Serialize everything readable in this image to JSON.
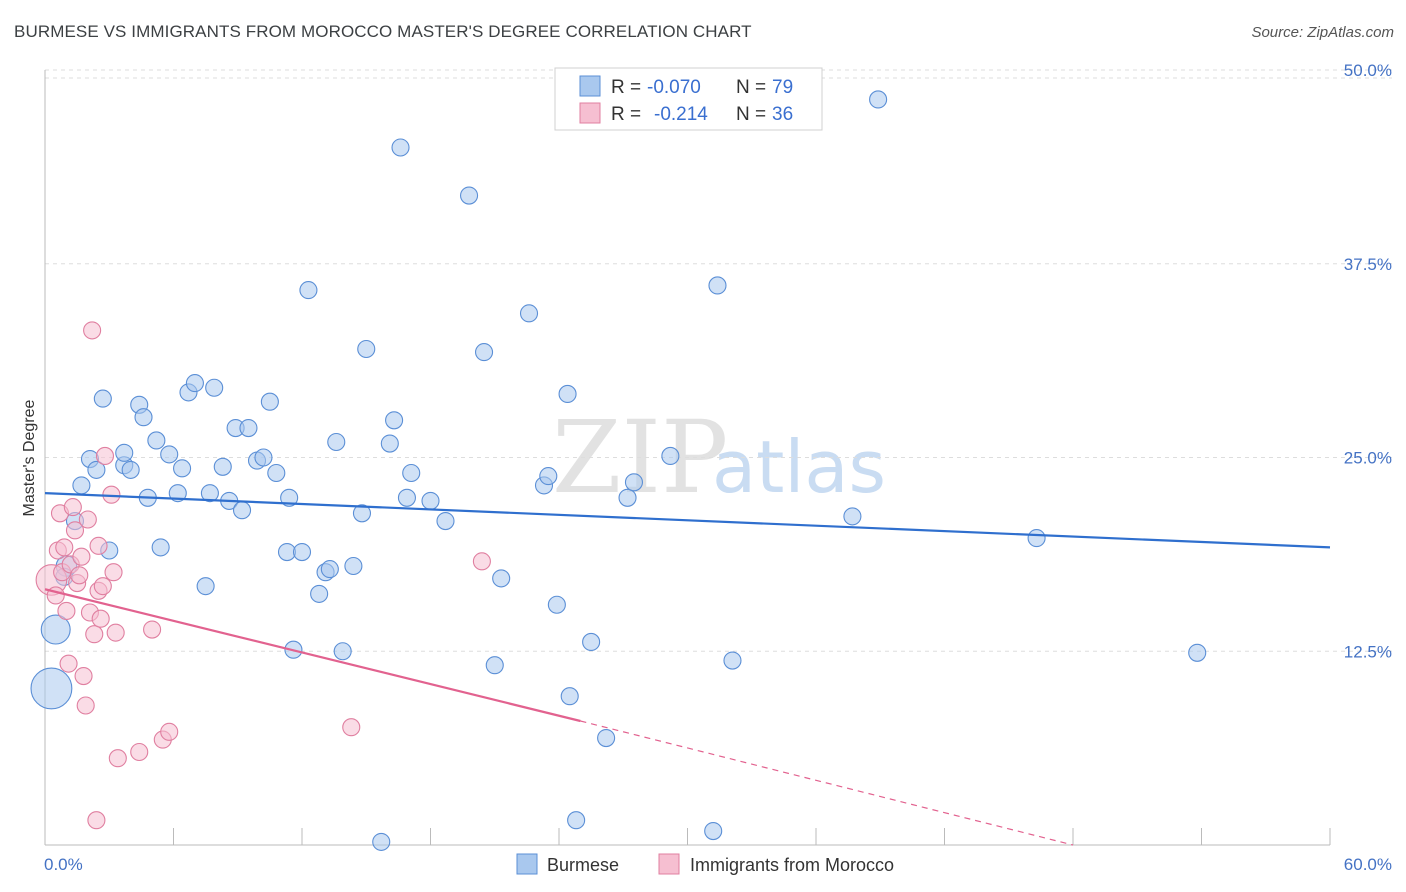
{
  "header": {
    "title": "BURMESE VS IMMIGRANTS FROM MOROCCO MASTER'S DEGREE CORRELATION CHART",
    "source": "Source: ZipAtlas.com"
  },
  "watermark": {
    "part1": "ZIP",
    "part2": "atlas"
  },
  "legend": {
    "rows": [
      {
        "r_label": "R =",
        "r_value": "-0.070",
        "n_label": "N =",
        "n_value": "79",
        "color": "#a9c8ee",
        "stroke": "#5b8fd6"
      },
      {
        "r_label": "R =",
        "r_value": "-0.214",
        "n_label": "N =",
        "n_value": "36",
        "color": "#f6bfd1",
        "stroke": "#e07fa0"
      }
    ]
  },
  "bottom_legend": [
    {
      "label": "Burmese",
      "color": "#a9c8ee",
      "stroke": "#5b8fd6"
    },
    {
      "label": "Immigrants from Morocco",
      "color": "#f6bfd1",
      "stroke": "#e07fa0"
    }
  ],
  "chart_data": {
    "type": "scatter",
    "title": "BURMESE VS IMMIGRANTS FROM MOROCCO MASTER'S DEGREE CORRELATION CHART",
    "xlabel": "",
    "ylabel": "Master's Degree",
    "xlim": [
      0,
      60
    ],
    "ylim": [
      0,
      50
    ],
    "x_tick_labels": [
      "0.0%",
      "60.0%"
    ],
    "y_ticks": [
      12.5,
      25.0,
      37.5,
      50.0
    ],
    "y_tick_labels": [
      "12.5%",
      "25.0%",
      "37.5%",
      "50.0%"
    ],
    "grid": true,
    "series": [
      {
        "name": "Burmese",
        "color": "#a9c8ee",
        "stroke": "#5b8fd6",
        "trend": {
          "x": [
            0,
            60
          ],
          "y": [
            22.7,
            19.2
          ],
          "color": "#2f6fce"
        },
        "points": [
          [
            0.3,
            10.1,
            2.4
          ],
          [
            0.5,
            13.9,
            1.7
          ],
          [
            1.0,
            18.0,
            1.2
          ],
          [
            0.9,
            17.3,
            1.0
          ],
          [
            1.4,
            20.9,
            1.0
          ],
          [
            1.7,
            23.2,
            1.0
          ],
          [
            2.1,
            24.9,
            1.0
          ],
          [
            2.4,
            24.2,
            1.0
          ],
          [
            2.7,
            28.8,
            1.0
          ],
          [
            3.0,
            19.0,
            1.0
          ],
          [
            3.7,
            24.5,
            1.0
          ],
          [
            3.7,
            25.3,
            1.0
          ],
          [
            4.0,
            24.2,
            1.0
          ],
          [
            4.4,
            28.4,
            1.0
          ],
          [
            4.6,
            27.6,
            1.0
          ],
          [
            4.8,
            22.4,
            1.0
          ],
          [
            5.2,
            26.1,
            1.0
          ],
          [
            5.4,
            19.2,
            1.0
          ],
          [
            5.8,
            25.2,
            1.0
          ],
          [
            6.2,
            22.7,
            1.0
          ],
          [
            6.4,
            24.3,
            1.0
          ],
          [
            6.7,
            29.2,
            1.0
          ],
          [
            7.0,
            29.8,
            1.0
          ],
          [
            7.5,
            16.7,
            1.0
          ],
          [
            7.7,
            22.7,
            1.0
          ],
          [
            7.9,
            29.5,
            1.0
          ],
          [
            8.3,
            24.4,
            1.0
          ],
          [
            8.6,
            22.2,
            1.0
          ],
          [
            8.9,
            26.9,
            1.0
          ],
          [
            9.2,
            21.6,
            1.0
          ],
          [
            9.5,
            26.9,
            1.0
          ],
          [
            9.9,
            24.8,
            1.0
          ],
          [
            10.2,
            25.0,
            1.0
          ],
          [
            10.5,
            28.6,
            1.0
          ],
          [
            10.8,
            24.0,
            1.0
          ],
          [
            11.3,
            18.9,
            1.0
          ],
          [
            11.4,
            22.4,
            1.0
          ],
          [
            11.6,
            12.6,
            1.0
          ],
          [
            12.0,
            18.9,
            1.0
          ],
          [
            12.3,
            35.8,
            1.0
          ],
          [
            12.8,
            16.2,
            1.0
          ],
          [
            13.1,
            17.6,
            1.0
          ],
          [
            13.3,
            17.8,
            1.0
          ],
          [
            13.6,
            26.0,
            1.0
          ],
          [
            13.9,
            12.5,
            1.0
          ],
          [
            14.4,
            18.0,
            1.0
          ],
          [
            14.8,
            21.4,
            1.0
          ],
          [
            15.0,
            32.0,
            1.0
          ],
          [
            15.7,
            0.2,
            1.0
          ],
          [
            16.1,
            25.9,
            1.0
          ],
          [
            16.3,
            27.4,
            1.0
          ],
          [
            16.6,
            45.0,
            1.0
          ],
          [
            16.9,
            22.4,
            1.0
          ],
          [
            17.1,
            24.0,
            1.0
          ],
          [
            18.0,
            22.2,
            1.0
          ],
          [
            18.7,
            20.9,
            1.0
          ],
          [
            19.8,
            41.9,
            1.0
          ],
          [
            20.5,
            31.8,
            1.0
          ],
          [
            21.0,
            11.6,
            1.0
          ],
          [
            21.3,
            17.2,
            1.0
          ],
          [
            22.6,
            34.3,
            1.0
          ],
          [
            23.3,
            23.2,
            1.0
          ],
          [
            23.5,
            23.8,
            1.0
          ],
          [
            23.9,
            15.5,
            1.0
          ],
          [
            24.4,
            29.1,
            1.0
          ],
          [
            24.5,
            9.6,
            1.0
          ],
          [
            24.8,
            1.6,
            1.0
          ],
          [
            25.5,
            13.1,
            1.0
          ],
          [
            26.2,
            6.9,
            1.0
          ],
          [
            27.2,
            22.4,
            1.0
          ],
          [
            27.5,
            23.4,
            1.0
          ],
          [
            29.2,
            25.1,
            1.0
          ],
          [
            31.2,
            0.9,
            1.0
          ],
          [
            31.4,
            36.1,
            1.0
          ],
          [
            32.1,
            11.9,
            1.0
          ],
          [
            37.7,
            21.2,
            1.0
          ],
          [
            38.9,
            48.1,
            1.0
          ],
          [
            46.3,
            19.8,
            1.0
          ],
          [
            53.8,
            12.4,
            1.0
          ]
        ]
      },
      {
        "name": "Immigrants from Morocco",
        "color": "#f6bfd1",
        "stroke": "#e07fa0",
        "trend": {
          "x": [
            0,
            25.0
          ],
          "y": [
            16.5,
            8.0
          ],
          "dash_extend_to": [
            48.0,
            0.0
          ],
          "color": "#e2628f"
        },
        "points": [
          [
            0.3,
            17.1,
            1.8
          ],
          [
            0.5,
            16.1,
            1.0
          ],
          [
            0.6,
            19.0,
            1.0
          ],
          [
            0.8,
            17.6,
            1.0
          ],
          [
            0.7,
            21.4,
            1.0
          ],
          [
            0.9,
            19.2,
            1.0
          ],
          [
            1.0,
            15.1,
            1.0
          ],
          [
            1.1,
            11.7,
            1.0
          ],
          [
            1.2,
            18.1,
            1.0
          ],
          [
            1.3,
            21.8,
            1.0
          ],
          [
            1.4,
            20.3,
            1.0
          ],
          [
            1.5,
            16.9,
            1.0
          ],
          [
            1.6,
            17.4,
            1.0
          ],
          [
            1.7,
            18.6,
            1.0
          ],
          [
            1.8,
            10.9,
            1.0
          ],
          [
            1.9,
            9.0,
            1.0
          ],
          [
            2.0,
            21.0,
            1.0
          ],
          [
            2.1,
            15.0,
            1.0
          ],
          [
            2.2,
            33.2,
            1.0
          ],
          [
            2.3,
            13.6,
            1.0
          ],
          [
            2.4,
            1.6,
            1.0
          ],
          [
            2.5,
            19.3,
            1.0
          ],
          [
            2.5,
            16.4,
            1.0
          ],
          [
            2.6,
            14.6,
            1.0
          ],
          [
            2.7,
            16.7,
            1.0
          ],
          [
            2.8,
            25.1,
            1.0
          ],
          [
            3.1,
            22.6,
            1.0
          ],
          [
            3.2,
            17.6,
            1.0
          ],
          [
            3.3,
            13.7,
            1.0
          ],
          [
            3.4,
            5.6,
            1.0
          ],
          [
            4.4,
            6.0,
            1.0
          ],
          [
            5.0,
            13.9,
            1.0
          ],
          [
            5.5,
            6.8,
            1.0
          ],
          [
            5.8,
            7.3,
            1.0
          ],
          [
            14.3,
            7.6,
            1.0
          ],
          [
            20.4,
            18.3,
            1.0
          ]
        ]
      }
    ]
  }
}
